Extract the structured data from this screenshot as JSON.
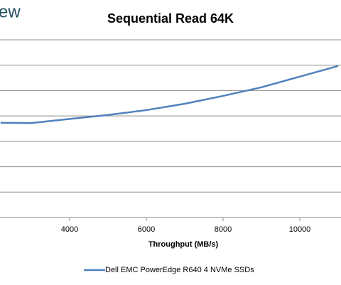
{
  "logo_text": "ew",
  "chart_data": {
    "type": "line",
    "title": "Sequential Read 64K",
    "x_label": "Throughput (MB/s)",
    "x": [
      2200,
      3000,
      4000,
      5000,
      6000,
      7000,
      8000,
      9000,
      10000,
      11000
    ],
    "series": [
      {
        "name": "Dell EMC PowerEdge R640 4 NVMe SSDs",
        "color": "#4f81bd",
        "values": [
          3.73,
          3.72,
          3.88,
          4.04,
          4.23,
          4.48,
          4.79,
          5.13,
          5.55,
          5.97
        ]
      }
    ],
    "xlim": [
      2185,
      11074
    ],
    "xticks": [
      4000,
      6000,
      8000,
      10000
    ],
    "ylim": [
      0,
      7
    ],
    "grid": true
  }
}
